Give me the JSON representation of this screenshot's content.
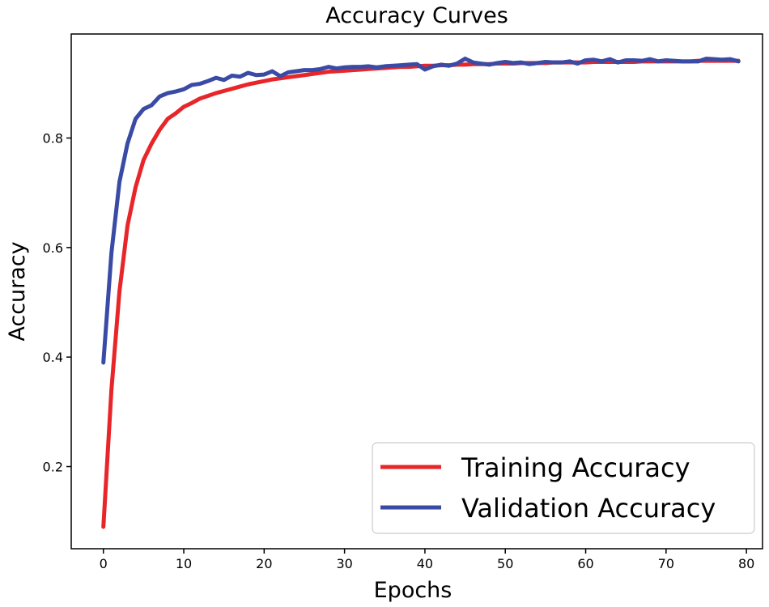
{
  "chart_data": {
    "type": "line",
    "title": "Accuracy Curves",
    "xlabel": "Epochs",
    "ylabel": "Accuracy",
    "xlim": [
      -4,
      82
    ],
    "ylim": [
      0.05,
      0.99
    ],
    "xticks": [
      0,
      10,
      20,
      30,
      40,
      50,
      60,
      70,
      80
    ],
    "yticks": [
      0.2,
      0.4,
      0.6,
      0.8
    ],
    "xtick_labels": [
      "0",
      "10",
      "20",
      "30",
      "40",
      "50",
      "60",
      "70",
      "80"
    ],
    "ytick_labels": [
      "0.2",
      "0.4",
      "0.6",
      "0.8"
    ],
    "grid": false,
    "legend_position": "bottom-right",
    "x": [
      0,
      1,
      2,
      3,
      4,
      5,
      6,
      7,
      8,
      9,
      10,
      11,
      12,
      13,
      14,
      15,
      16,
      17,
      18,
      19,
      20,
      21,
      22,
      23,
      24,
      25,
      26,
      27,
      28,
      29,
      30,
      31,
      32,
      33,
      34,
      35,
      36,
      37,
      38,
      39,
      40,
      41,
      42,
      43,
      44,
      45,
      46,
      47,
      48,
      49,
      50,
      51,
      52,
      53,
      54,
      55,
      56,
      57,
      58,
      59,
      60,
      61,
      62,
      63,
      64,
      65,
      66,
      67,
      68,
      69,
      70,
      71,
      72,
      73,
      74,
      75,
      76,
      77,
      78,
      79
    ],
    "series": [
      {
        "name": "Training Accuracy",
        "color": "#e8262a",
        "values": [
          0.09,
          0.34,
          0.52,
          0.64,
          0.71,
          0.76,
          0.79,
          0.815,
          0.835,
          0.845,
          0.857,
          0.864,
          0.872,
          0.877,
          0.882,
          0.886,
          0.89,
          0.894,
          0.898,
          0.901,
          0.904,
          0.907,
          0.909,
          0.911,
          0.913,
          0.915,
          0.917,
          0.919,
          0.921,
          0.922,
          0.923,
          0.924,
          0.925,
          0.926,
          0.927,
          0.928,
          0.929,
          0.93,
          0.93,
          0.931,
          0.932,
          0.932,
          0.933,
          0.933,
          0.934,
          0.934,
          0.935,
          0.935,
          0.935,
          0.936,
          0.936,
          0.936,
          0.937,
          0.937,
          0.937,
          0.937,
          0.938,
          0.938,
          0.938,
          0.938,
          0.938,
          0.939,
          0.939,
          0.939,
          0.939,
          0.939,
          0.939,
          0.94,
          0.94,
          0.94,
          0.94,
          0.94,
          0.94,
          0.94,
          0.941,
          0.941,
          0.941,
          0.941,
          0.941,
          0.941
        ]
      },
      {
        "name": "Validation Accuracy",
        "color": "#3a4ba6",
        "values": [
          0.39,
          0.59,
          0.72,
          0.79,
          0.835,
          0.853,
          0.86,
          0.876,
          0.882,
          0.885,
          0.889,
          0.897,
          0.899,
          0.904,
          0.91,
          0.906,
          0.914,
          0.912,
          0.919,
          0.915,
          0.916,
          0.922,
          0.913,
          0.92,
          0.922,
          0.924,
          0.924,
          0.926,
          0.93,
          0.927,
          0.929,
          0.93,
          0.93,
          0.931,
          0.929,
          0.931,
          0.932,
          0.933,
          0.934,
          0.935,
          0.925,
          0.931,
          0.934,
          0.932,
          0.936,
          0.945,
          0.938,
          0.936,
          0.934,
          0.937,
          0.939,
          0.937,
          0.938,
          0.935,
          0.937,
          0.939,
          0.938,
          0.938,
          0.94,
          0.936,
          0.942,
          0.943,
          0.94,
          0.944,
          0.938,
          0.942,
          0.942,
          0.941,
          0.944,
          0.94,
          0.942,
          0.941,
          0.94,
          0.94,
          0.94,
          0.945,
          0.944,
          0.943,
          0.944,
          0.94
        ]
      }
    ]
  }
}
